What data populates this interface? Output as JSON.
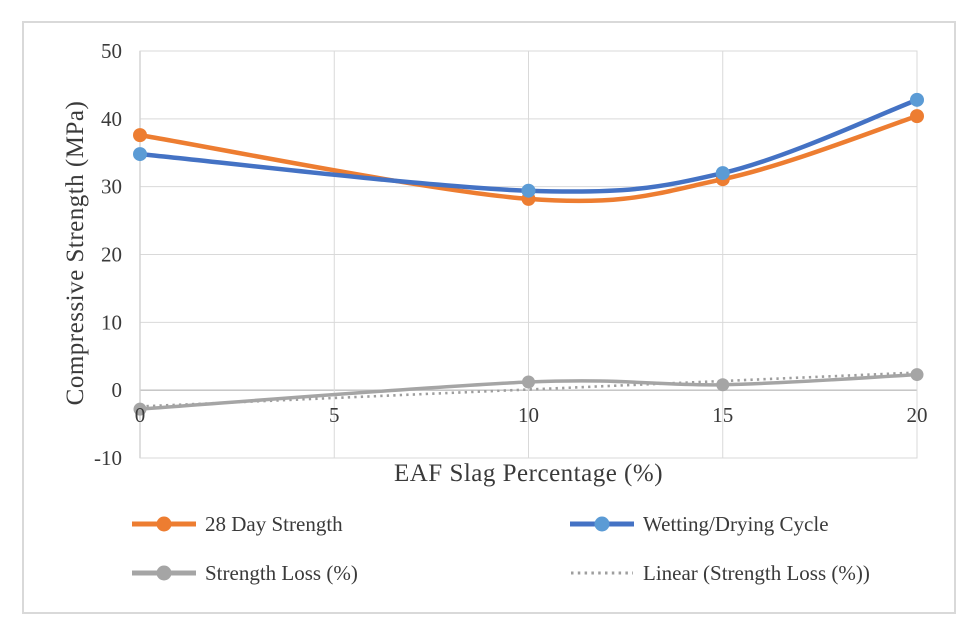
{
  "chart": {
    "background": "#FFFFFF",
    "frame_border_color": "#D9D9D9",
    "gridline_color": "#D9D9D9",
    "axis_line_color": "#BFBFBF",
    "text_color": "#3A3A3A"
  },
  "chart_data": {
    "type": "line",
    "title": "",
    "xlabel": "EAF Slag Percentage (%)",
    "ylabel": "Compressive Strength (MPa)",
    "x": [
      0,
      10,
      15,
      20
    ],
    "x_ticks": [
      0,
      5,
      10,
      15,
      20
    ],
    "y_ticks": [
      -10,
      0,
      10,
      20,
      30,
      40,
      50
    ],
    "xlim": [
      0,
      20
    ],
    "ylim": [
      -10,
      50
    ],
    "grid": true,
    "legend_position": "bottom-two-columns",
    "series": [
      {
        "name": "28 Day Strength",
        "style": "smooth",
        "marker": true,
        "color": "#ED7D31",
        "marker_color": "#ED7D31",
        "line_width": 4.5,
        "marker_radius": 7,
        "values": [
          37.6,
          28.2,
          31.1,
          40.4
        ]
      },
      {
        "name": "Wetting/Drying Cycle",
        "style": "smooth",
        "marker": true,
        "color": "#4472C4",
        "marker_color": "#5B9BD5",
        "line_width": 4.5,
        "marker_radius": 7,
        "values": [
          34.8,
          29.4,
          32.0,
          42.8
        ]
      },
      {
        "name": "Strength Loss (%)",
        "style": "smooth",
        "marker": true,
        "color": "#A5A5A5",
        "marker_color": "#A5A5A5",
        "line_width": 3.5,
        "marker_radius": 6.5,
        "values": [
          -2.8,
          1.2,
          0.8,
          2.3
        ]
      },
      {
        "name": "Linear (Strength Loss (%))",
        "style": "dotted-trend",
        "marker": false,
        "color": "#9E9E9E",
        "line_width": 2.6,
        "trend_x": [
          0,
          20
        ],
        "trend_values": [
          -2.4,
          2.6
        ]
      }
    ]
  }
}
